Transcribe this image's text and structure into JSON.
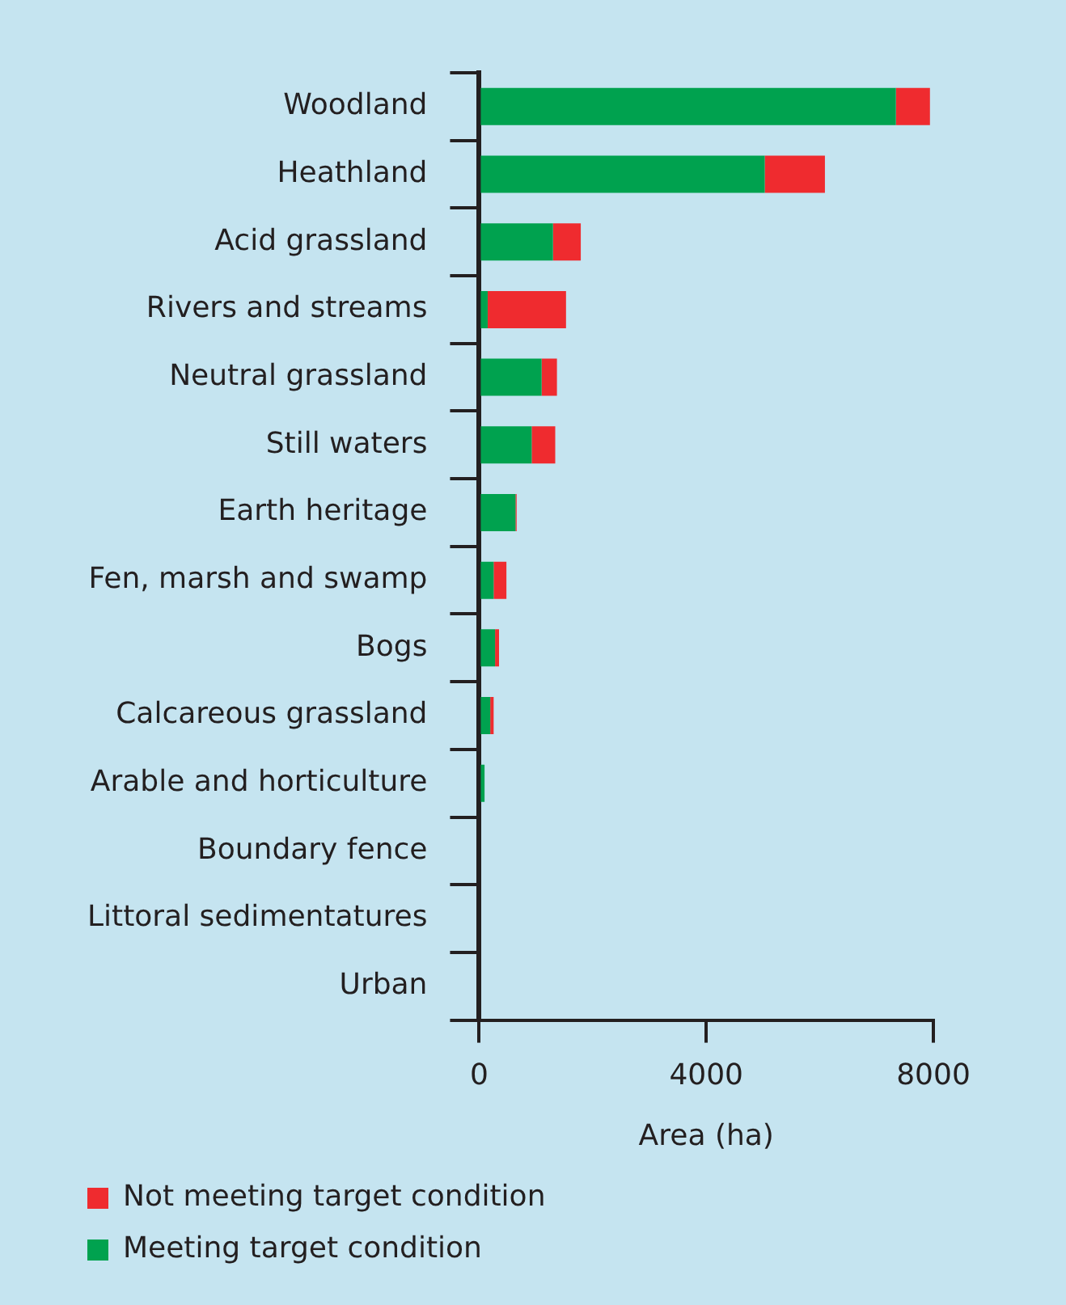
{
  "chart_data": {
    "type": "bar",
    "orientation": "horizontal",
    "stacked": true,
    "categories": [
      "Woodland",
      "Heathland",
      "Acid grassland",
      "Rivers and streams",
      "Neutral grassland",
      "Still waters",
      "Earth heritage",
      "Fen, marsh and swamp",
      "Bogs",
      "Calcareous grassland",
      "Arable and horticulture",
      "Boundary fence",
      "Littoral sedimentatures",
      "Urban"
    ],
    "series": [
      {
        "name": "Meeting target condition",
        "color": "#00a24f",
        "values": [
          7340,
          5030,
          1300,
          150,
          1100,
          925,
          640,
          255,
          280,
          195,
          95,
          0,
          0,
          0
        ]
      },
      {
        "name": "Not meeting target condition",
        "color": "#ef2b2f",
        "values": [
          600,
          1060,
          490,
          1380,
          270,
          415,
          20,
          225,
          70,
          60,
          0,
          0,
          0,
          0
        ]
      }
    ],
    "xlabel": "Area (ha)",
    "xlim": [
      0,
      8000
    ],
    "xticks": [
      0,
      4000,
      8000
    ],
    "grid": false,
    "legend": "bottom left"
  }
}
